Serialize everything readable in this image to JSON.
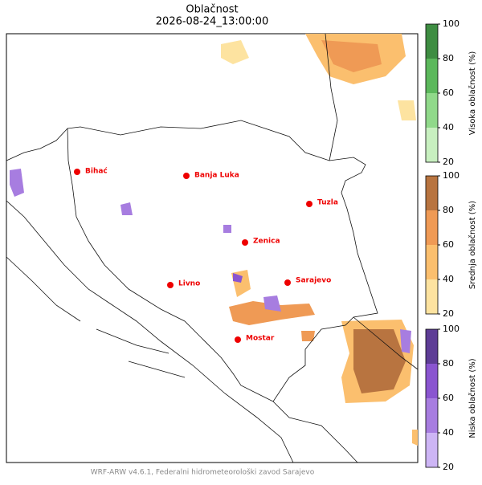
{
  "title": "Oblačnost",
  "subtitle": "2026-08-24_13:00:00",
  "cities": [
    {
      "name": "Bihać"
    },
    {
      "name": "Banja Luka"
    },
    {
      "name": "Tuzla"
    },
    {
      "name": "Zenica"
    },
    {
      "name": "Livno"
    },
    {
      "name": "Sarajevo"
    },
    {
      "name": "Mostar"
    }
  ],
  "colorbars": [
    {
      "label": "Visoka oblačnost (%)",
      "lim": [
        20,
        100
      ],
      "ticks": [
        20,
        40,
        60,
        80,
        100
      ],
      "colors": [
        "#c8f0c0",
        "#90d98a",
        "#5cb85c",
        "#3e8d42"
      ]
    },
    {
      "label": "Srednja oblačnost (%)",
      "lim": [
        20,
        100
      ],
      "ticks": [
        20,
        40,
        60,
        80,
        100
      ],
      "colors": [
        "#fde3a0",
        "#fbbf6e",
        "#ef9a55",
        "#b87440"
      ]
    },
    {
      "label": "Niska oblačnost (%)",
      "lim": [
        20,
        100
      ],
      "ticks": [
        20,
        40,
        60,
        80,
        100
      ],
      "colors": [
        "#cdb5f5",
        "#a77de0",
        "#8a55d0",
        "#5e3d96"
      ]
    }
  ],
  "footer": "WRF-ARW v4.6.1, Federalni hidrometeorološki zavod Sarajevo"
}
